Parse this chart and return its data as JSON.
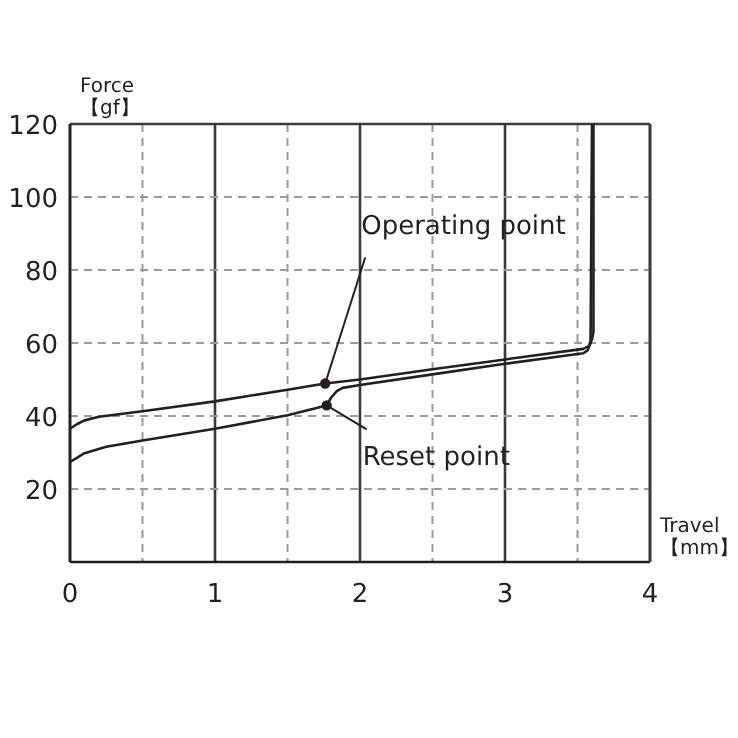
{
  "chart_data": {
    "type": "line",
    "xlabel": "Travel 【mm】",
    "ylabel": "Force 【gf】",
    "xlim": [
      0,
      4
    ],
    "ylim": [
      0,
      120
    ],
    "xticks": [
      0,
      {
        "value": 0.5,
        "label": null
      },
      1,
      {
        "value": 1.5,
        "label": null
      },
      2,
      {
        "value": 2.5,
        "label": null
      },
      3,
      {
        "value": 3.5,
        "label": null
      },
      4
    ],
    "yticks": [
      {
        "value": 0,
        "label": null
      },
      20,
      40,
      60,
      80,
      100,
      120
    ],
    "grid": true,
    "marker": "none",
    "line_style": "solid",
    "series": [
      {
        "color": "#231f20",
        "x": [
          0,
          0.05,
          0.1,
          0.2,
          0.5,
          1.0,
          1.5,
          1.76,
          2.0,
          2.5,
          3.0,
          3.54,
          3.58,
          3.6,
          3.61,
          3.61
        ],
        "values": [
          36.5,
          37.8,
          38.8,
          39.8,
          41.3,
          44.0,
          47.2,
          48.9,
          50.0,
          52.8,
          55.5,
          58.4,
          59.2,
          61,
          63,
          120
        ]
      },
      {
        "color": "#231f20",
        "x": [
          0,
          0.05,
          0.1,
          0.25,
          0.5,
          1.0,
          1.5,
          1.77,
          1.8,
          1.84,
          1.88,
          2.0,
          2.5,
          3.0,
          3.54,
          3.57,
          3.59,
          3.6
        ],
        "values": [
          27.4,
          28.6,
          29.8,
          31.6,
          33.3,
          36.5,
          40.2,
          42.9,
          45,
          46.8,
          47.7,
          48.5,
          51.4,
          54.3,
          57.2,
          58,
          60,
          120
        ]
      }
    ],
    "annotations": [
      {
        "text": "Operating point",
        "x": 1.76,
        "y": 48.9
      },
      {
        "text": "Reset point",
        "x": 1.77,
        "y": 42.9
      }
    ]
  }
}
